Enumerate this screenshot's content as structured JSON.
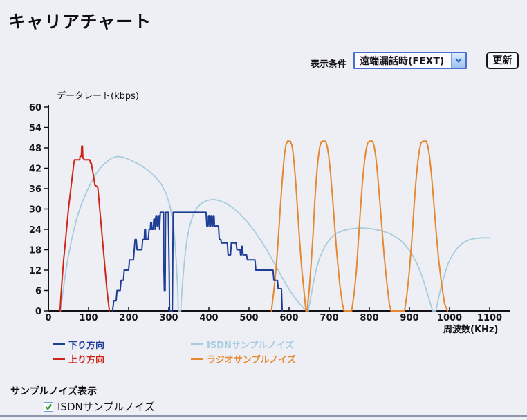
{
  "page": {
    "title": "キャリアチャート"
  },
  "controls": {
    "condition_label": "表示条件",
    "condition_value": "遠端漏話時(FEXT)",
    "update_label": "更新"
  },
  "chart_data": {
    "type": "line",
    "xlabel": "周波数(KHz)",
    "ylabel": "データレート(kbps)",
    "xlim": [
      0,
      1150
    ],
    "ylim": [
      0,
      60
    ],
    "x_ticks": [
      0,
      100,
      200,
      300,
      400,
      500,
      600,
      700,
      800,
      900,
      1000,
      1100
    ],
    "y_ticks": [
      0,
      6,
      12,
      18,
      24,
      30,
      36,
      42,
      48,
      54,
      60
    ],
    "grid": false,
    "legend_position": "below",
    "series": [
      {
        "name": "下り方向",
        "color": "#1e3d96",
        "points": [
          [
            160,
            0
          ],
          [
            163,
            3
          ],
          [
            169,
            3
          ],
          [
            171,
            6
          ],
          [
            179,
            6
          ],
          [
            181,
            9
          ],
          [
            187,
            9
          ],
          [
            189,
            12
          ],
          [
            200,
            12
          ],
          [
            202,
            15
          ],
          [
            212,
            15
          ],
          [
            214,
            18
          ],
          [
            216,
            21
          ],
          [
            219,
            21
          ],
          [
            221,
            18
          ],
          [
            233,
            18
          ],
          [
            235,
            21
          ],
          [
            239,
            21
          ],
          [
            240,
            24
          ],
          [
            242,
            24
          ],
          [
            243,
            21
          ],
          [
            249,
            21
          ],
          [
            251,
            24
          ],
          [
            254,
            24
          ],
          [
            255,
            26
          ],
          [
            257,
            26
          ],
          [
            258,
            24
          ],
          [
            261,
            24
          ],
          [
            263,
            27
          ],
          [
            265,
            27
          ],
          [
            266,
            24
          ],
          [
            268,
            28
          ],
          [
            270,
            28
          ],
          [
            271,
            25
          ],
          [
            273,
            25
          ],
          [
            274,
            28
          ],
          [
            276,
            28
          ],
          [
            277,
            24
          ],
          [
            279,
            29
          ],
          [
            287,
            29
          ],
          [
            288,
            12
          ],
          [
            289,
            6
          ],
          [
            291,
            6
          ],
          [
            292,
            29
          ],
          [
            299,
            29
          ],
          [
            301,
            12
          ],
          [
            302,
            0
          ],
          [
            309,
            0
          ],
          [
            311,
            29
          ],
          [
            393,
            29
          ],
          [
            395,
            25
          ],
          [
            398,
            25
          ],
          [
            399,
            28
          ],
          [
            401,
            28
          ],
          [
            402,
            25
          ],
          [
            404,
            25
          ],
          [
            405,
            28
          ],
          [
            407,
            28
          ],
          [
            408,
            25
          ],
          [
            410,
            25
          ],
          [
            411,
            28
          ],
          [
            413,
            28
          ],
          [
            414,
            25
          ],
          [
            424,
            25
          ],
          [
            426,
            21
          ],
          [
            430,
            21
          ],
          [
            431,
            20
          ],
          [
            446,
            20
          ],
          [
            448,
            16.5
          ],
          [
            454,
            16.5
          ],
          [
            456,
            20
          ],
          [
            468,
            20
          ],
          [
            470,
            18
          ],
          [
            478,
            18
          ],
          [
            479,
            16.5
          ],
          [
            481,
            16.5
          ],
          [
            482,
            19
          ],
          [
            484,
            19
          ],
          [
            485,
            16.5
          ],
          [
            494,
            16.5
          ],
          [
            496,
            15
          ],
          [
            515,
            15
          ],
          [
            517,
            12
          ],
          [
            560,
            12
          ],
          [
            562,
            9
          ],
          [
            571,
            9
          ],
          [
            573,
            6.5
          ],
          [
            581,
            6.5
          ],
          [
            583,
            0
          ]
        ]
      },
      {
        "name": "上り方向",
        "color": "#cf2517",
        "points": [
          [
            29,
            0
          ],
          [
            31,
            4
          ],
          [
            34,
            9
          ],
          [
            38,
            15
          ],
          [
            42,
            20
          ],
          [
            46,
            25
          ],
          [
            50,
            30
          ],
          [
            54,
            34
          ],
          [
            58,
            38
          ],
          [
            61,
            41
          ],
          [
            63,
            43
          ],
          [
            65,
            44.5
          ],
          [
            78,
            44.5
          ],
          [
            79,
            45.5
          ],
          [
            82,
            45.5
          ],
          [
            83,
            48.5
          ],
          [
            85,
            48.5
          ],
          [
            86,
            45
          ],
          [
            88,
            45
          ],
          [
            89,
            44.5
          ],
          [
            103,
            44.5
          ],
          [
            105,
            43.5
          ],
          [
            107,
            43.5
          ],
          [
            109,
            42
          ],
          [
            112,
            40
          ],
          [
            114,
            38.5
          ],
          [
            116,
            37
          ],
          [
            123,
            36.5
          ],
          [
            125,
            34
          ],
          [
            128,
            30
          ],
          [
            131,
            26
          ],
          [
            134,
            22
          ],
          [
            137,
            18
          ],
          [
            140,
            14
          ],
          [
            143,
            10
          ],
          [
            146,
            6
          ],
          [
            149,
            3
          ],
          [
            152,
            0
          ]
        ]
      },
      {
        "name": "ISDNサンプルノイズ",
        "color": "#a6ccdd",
        "points": [
          [
            30,
            0
          ],
          [
            39,
            8
          ],
          [
            48,
            15
          ],
          [
            58,
            21
          ],
          [
            70,
            27
          ],
          [
            84,
            32
          ],
          [
            99,
            36
          ],
          [
            114,
            39.5
          ],
          [
            129,
            42
          ],
          [
            144,
            43.8
          ],
          [
            158,
            45
          ],
          [
            172,
            45.5
          ],
          [
            188,
            45.2
          ],
          [
            207,
            44.3
          ],
          [
            228,
            43
          ],
          [
            248,
            41.4
          ],
          [
            266,
            39.5
          ],
          [
            282,
            37.2
          ],
          [
            294,
            34.4
          ],
          [
            303,
            31
          ],
          [
            310,
            26.5
          ],
          [
            315,
            21
          ],
          [
            319,
            14
          ],
          [
            322,
            7
          ],
          [
            324,
            0
          ],
          [
            330,
            0
          ],
          [
            333,
            6
          ],
          [
            337,
            12
          ],
          [
            341,
            17
          ],
          [
            346,
            21.5
          ],
          [
            352,
            25
          ],
          [
            360,
            28
          ],
          [
            370,
            30.3
          ],
          [
            382,
            31.7
          ],
          [
            395,
            32.5
          ],
          [
            410,
            32.8
          ],
          [
            426,
            32.5
          ],
          [
            442,
            31.7
          ],
          [
            459,
            30.4
          ],
          [
            477,
            28.6
          ],
          [
            495,
            26.3
          ],
          [
            513,
            23.6
          ],
          [
            531,
            20.5
          ],
          [
            549,
            17
          ],
          [
            567,
            13.2
          ],
          [
            585,
            9.3
          ],
          [
            603,
            5.8
          ],
          [
            621,
            2.8
          ],
          [
            638,
            0.6
          ],
          [
            648,
            0
          ],
          [
            654,
            4
          ],
          [
            661,
            8.5
          ],
          [
            669,
            12.8
          ],
          [
            678,
            16.2
          ],
          [
            690,
            19.2
          ],
          [
            703,
            21.3
          ],
          [
            718,
            22.8
          ],
          [
            736,
            23.7
          ],
          [
            756,
            24.2
          ],
          [
            780,
            24.4
          ],
          [
            805,
            24.2
          ],
          [
            830,
            23.6
          ],
          [
            852,
            22.7
          ],
          [
            872,
            21.3
          ],
          [
            890,
            19.4
          ],
          [
            906,
            16.8
          ],
          [
            920,
            13.6
          ],
          [
            932,
            10
          ],
          [
            942,
            6.2
          ],
          [
            951,
            2.6
          ],
          [
            958,
            0
          ],
          [
            966,
            0
          ],
          [
            972,
            3.5
          ],
          [
            979,
            7
          ],
          [
            987,
            10.5
          ],
          [
            996,
            13.8
          ],
          [
            1007,
            16.4
          ],
          [
            1019,
            18.4
          ],
          [
            1032,
            19.9
          ],
          [
            1046,
            20.8
          ],
          [
            1062,
            21.3
          ],
          [
            1080,
            21.5
          ],
          [
            1100,
            21.5
          ]
        ]
      },
      {
        "name": "ラジオサンプルノイズ",
        "color": "#e5882f",
        "points": [
          [
            556,
            0
          ],
          [
            562,
            6
          ],
          [
            568,
            13
          ],
          [
            573,
            21
          ],
          [
            578,
            30
          ],
          [
            582,
            37
          ],
          [
            586,
            43
          ],
          [
            589,
            46.5
          ],
          [
            592,
            48.8
          ],
          [
            596,
            50
          ],
          [
            603,
            50
          ],
          [
            607,
            48.8
          ],
          [
            610,
            46.5
          ],
          [
            613,
            43
          ],
          [
            617,
            37
          ],
          [
            621,
            30
          ],
          [
            626,
            21
          ],
          [
            631,
            13
          ],
          [
            637,
            6
          ],
          [
            642,
            0
          ],
          [
            645,
            0
          ],
          [
            650,
            6
          ],
          [
            655,
            14
          ],
          [
            660,
            23
          ],
          [
            664,
            32
          ],
          [
            668,
            39
          ],
          [
            672,
            44.5
          ],
          [
            676,
            48
          ],
          [
            680,
            49.8
          ],
          [
            685,
            50
          ],
          [
            691,
            50
          ],
          [
            695,
            48.5
          ],
          [
            699,
            45.5
          ],
          [
            703,
            41
          ],
          [
            708,
            34
          ],
          [
            713,
            26
          ],
          [
            719,
            17
          ],
          [
            726,
            8
          ],
          [
            733,
            2
          ],
          [
            737,
            0
          ],
          [
            756,
            0
          ],
          [
            762,
            5
          ],
          [
            768,
            12
          ],
          [
            773,
            21
          ],
          [
            778,
            30
          ],
          [
            783,
            38
          ],
          [
            788,
            44
          ],
          [
            792,
            47.5
          ],
          [
            796,
            49.5
          ],
          [
            801,
            50
          ],
          [
            808,
            50
          ],
          [
            812,
            48.5
          ],
          [
            816,
            45.5
          ],
          [
            820,
            41
          ],
          [
            825,
            34
          ],
          [
            831,
            25
          ],
          [
            837,
            16
          ],
          [
            844,
            8
          ],
          [
            850,
            2
          ],
          [
            854,
            0
          ],
          [
            888,
            0
          ],
          [
            894,
            5
          ],
          [
            900,
            12
          ],
          [
            906,
            21
          ],
          [
            911,
            30
          ],
          [
            916,
            38
          ],
          [
            921,
            44
          ],
          [
            925,
            47.5
          ],
          [
            929,
            49.5
          ],
          [
            934,
            50
          ],
          [
            942,
            50
          ],
          [
            946,
            48.5
          ],
          [
            950,
            45.5
          ],
          [
            955,
            40
          ],
          [
            960,
            33
          ],
          [
            966,
            24
          ],
          [
            973,
            15
          ],
          [
            981,
            7
          ],
          [
            988,
            2
          ],
          [
            995,
            0
          ]
        ]
      }
    ]
  },
  "noise_section": {
    "heading": "サンプルノイズ表示",
    "checkbox_label": "ISDNサンプルノイズ",
    "checked": true
  }
}
